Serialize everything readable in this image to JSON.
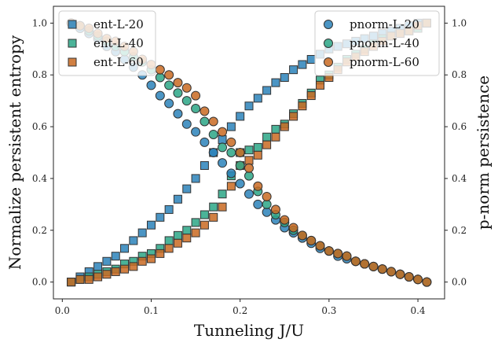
{
  "chart_data": {
    "type": "scatter",
    "xlabel": "Tunneling J/U",
    "ylabel_left": "Normalize persistent entropy",
    "ylabel_right": "p-norm persistence",
    "xlim": [
      -0.01,
      0.43
    ],
    "ylim_left": [
      -0.065,
      1.065
    ],
    "ylim_right": [
      -0.065,
      1.065
    ],
    "x_ticks": [
      0.0,
      0.1,
      0.2,
      0.3,
      0.4
    ],
    "y_ticks": [
      0.0,
      0.2,
      0.4,
      0.6,
      0.8,
      1.0
    ],
    "legend_left_position": "top-left",
    "legend_right_position": "top-right",
    "colors": {
      "L20": "#2b83ba",
      "L40": "#2ca686",
      "L60": "#c96a22",
      "edge": "#333333"
    },
    "series": [
      {
        "name": "ent-L-20",
        "axis": "left",
        "marker": "square",
        "color": "#2b83ba",
        "x": [
          0.01,
          0.02,
          0.03,
          0.04,
          0.05,
          0.06,
          0.07,
          0.08,
          0.09,
          0.1,
          0.11,
          0.12,
          0.13,
          0.14,
          0.15,
          0.16,
          0.17,
          0.18,
          0.19,
          0.2,
          0.21,
          0.22,
          0.23,
          0.24,
          0.25,
          0.26,
          0.27,
          0.28,
          0.29,
          0.3,
          0.31,
          0.32,
          0.33,
          0.34,
          0.35,
          0.36,
          0.37,
          0.38,
          0.39,
          0.4,
          0.41
        ],
        "values": [
          0.0,
          0.02,
          0.04,
          0.06,
          0.08,
          0.1,
          0.13,
          0.16,
          0.19,
          0.22,
          0.25,
          0.28,
          0.32,
          0.36,
          0.4,
          0.45,
          0.5,
          0.55,
          0.6,
          0.64,
          0.68,
          0.71,
          0.74,
          0.77,
          0.79,
          0.82,
          0.84,
          0.86,
          0.88,
          0.9,
          0.91,
          0.92,
          0.93,
          0.94,
          0.95,
          0.96,
          0.97,
          0.98,
          0.99,
          1.0,
          1.0
        ]
      },
      {
        "name": "ent-L-40",
        "axis": "left",
        "marker": "square",
        "color": "#2ca686",
        "x": [
          0.01,
          0.02,
          0.03,
          0.04,
          0.05,
          0.06,
          0.07,
          0.08,
          0.09,
          0.1,
          0.11,
          0.12,
          0.13,
          0.14,
          0.15,
          0.16,
          0.17,
          0.18,
          0.19,
          0.2,
          0.21,
          0.22,
          0.23,
          0.24,
          0.25,
          0.26,
          0.27,
          0.28,
          0.29,
          0.3,
          0.31,
          0.32,
          0.33,
          0.34,
          0.35,
          0.36,
          0.37,
          0.38,
          0.39,
          0.4,
          0.41
        ],
        "values": [
          0.0,
          0.01,
          0.02,
          0.03,
          0.04,
          0.05,
          0.07,
          0.08,
          0.1,
          0.11,
          0.13,
          0.16,
          0.18,
          0.2,
          0.23,
          0.26,
          0.29,
          0.34,
          0.41,
          0.5,
          0.51,
          0.52,
          0.56,
          0.59,
          0.61,
          0.65,
          0.69,
          0.73,
          0.78,
          0.8,
          0.83,
          0.86,
          0.88,
          0.9,
          0.92,
          0.94,
          0.95,
          0.96,
          0.97,
          0.98,
          1.0
        ]
      },
      {
        "name": "ent-L-60",
        "axis": "left",
        "marker": "square",
        "color": "#c96a22",
        "x": [
          0.01,
          0.02,
          0.03,
          0.04,
          0.05,
          0.06,
          0.07,
          0.08,
          0.09,
          0.1,
          0.11,
          0.12,
          0.13,
          0.14,
          0.15,
          0.16,
          0.17,
          0.18,
          0.19,
          0.2,
          0.21,
          0.22,
          0.23,
          0.24,
          0.25,
          0.26,
          0.27,
          0.28,
          0.29,
          0.3,
          0.31,
          0.32,
          0.33,
          0.34,
          0.35,
          0.36,
          0.37,
          0.38,
          0.39,
          0.4,
          0.41
        ],
        "values": [
          0.0,
          0.01,
          0.01,
          0.02,
          0.03,
          0.04,
          0.05,
          0.06,
          0.08,
          0.09,
          0.11,
          0.13,
          0.15,
          0.17,
          0.19,
          0.22,
          0.25,
          0.29,
          0.37,
          0.45,
          0.47,
          0.49,
          0.53,
          0.56,
          0.6,
          0.64,
          0.68,
          0.72,
          0.76,
          0.79,
          0.82,
          0.85,
          0.87,
          0.89,
          0.91,
          0.93,
          0.95,
          0.96,
          0.97,
          0.99,
          1.0
        ]
      },
      {
        "name": "pnorm-L-20",
        "axis": "right",
        "marker": "circle",
        "color": "#2b83ba",
        "x": [
          0.01,
          0.02,
          0.03,
          0.04,
          0.05,
          0.06,
          0.07,
          0.08,
          0.09,
          0.1,
          0.11,
          0.12,
          0.13,
          0.14,
          0.15,
          0.16,
          0.17,
          0.18,
          0.19,
          0.2,
          0.21,
          0.22,
          0.23,
          0.24,
          0.25,
          0.26,
          0.27,
          0.28,
          0.29,
          0.3,
          0.31,
          0.32,
          0.33,
          0.34,
          0.35,
          0.36,
          0.37,
          0.38,
          0.39,
          0.4,
          0.41
        ],
        "values": [
          1.0,
          0.98,
          0.96,
          0.94,
          0.91,
          0.89,
          0.86,
          0.83,
          0.8,
          0.76,
          0.72,
          0.69,
          0.65,
          0.61,
          0.58,
          0.54,
          0.5,
          0.46,
          0.42,
          0.38,
          0.34,
          0.3,
          0.27,
          0.24,
          0.21,
          0.19,
          0.17,
          0.15,
          0.13,
          0.12,
          0.1,
          0.09,
          0.08,
          0.07,
          0.06,
          0.05,
          0.04,
          0.03,
          0.02,
          0.01,
          0.0
        ]
      },
      {
        "name": "pnorm-L-40",
        "axis": "right",
        "marker": "circle",
        "color": "#2ca686",
        "x": [
          0.01,
          0.02,
          0.03,
          0.04,
          0.05,
          0.06,
          0.07,
          0.08,
          0.09,
          0.1,
          0.11,
          0.12,
          0.13,
          0.14,
          0.15,
          0.16,
          0.17,
          0.18,
          0.19,
          0.2,
          0.21,
          0.22,
          0.23,
          0.24,
          0.25,
          0.26,
          0.27,
          0.28,
          0.29,
          0.3,
          0.31,
          0.32,
          0.33,
          0.34,
          0.35,
          0.36,
          0.37,
          0.38,
          0.39,
          0.4,
          0.41
        ],
        "values": [
          1.0,
          0.99,
          0.97,
          0.95,
          0.93,
          0.91,
          0.89,
          0.87,
          0.85,
          0.82,
          0.79,
          0.76,
          0.73,
          0.7,
          0.67,
          0.62,
          0.57,
          0.52,
          0.5,
          0.45,
          0.41,
          0.35,
          0.3,
          0.26,
          0.23,
          0.2,
          0.18,
          0.16,
          0.14,
          0.12,
          0.11,
          0.1,
          0.08,
          0.07,
          0.06,
          0.05,
          0.04,
          0.03,
          0.02,
          0.01,
          0.0
        ]
      },
      {
        "name": "pnorm-L-60",
        "axis": "right",
        "marker": "circle",
        "color": "#c96a22",
        "x": [
          0.01,
          0.02,
          0.03,
          0.04,
          0.05,
          0.06,
          0.07,
          0.08,
          0.09,
          0.1,
          0.11,
          0.12,
          0.13,
          0.14,
          0.15,
          0.16,
          0.17,
          0.18,
          0.19,
          0.2,
          0.21,
          0.22,
          0.23,
          0.24,
          0.25,
          0.26,
          0.27,
          0.28,
          0.29,
          0.3,
          0.31,
          0.32,
          0.33,
          0.34,
          0.35,
          0.36,
          0.37,
          0.38,
          0.39,
          0.4,
          0.41
        ],
        "values": [
          1.0,
          0.99,
          0.98,
          0.96,
          0.94,
          0.93,
          0.91,
          0.89,
          0.86,
          0.84,
          0.82,
          0.8,
          0.77,
          0.75,
          0.72,
          0.66,
          0.62,
          0.58,
          0.54,
          0.5,
          0.44,
          0.37,
          0.33,
          0.28,
          0.24,
          0.21,
          0.18,
          0.16,
          0.14,
          0.12,
          0.11,
          0.1,
          0.08,
          0.07,
          0.06,
          0.05,
          0.04,
          0.03,
          0.02,
          0.01,
          0.0
        ]
      }
    ]
  }
}
